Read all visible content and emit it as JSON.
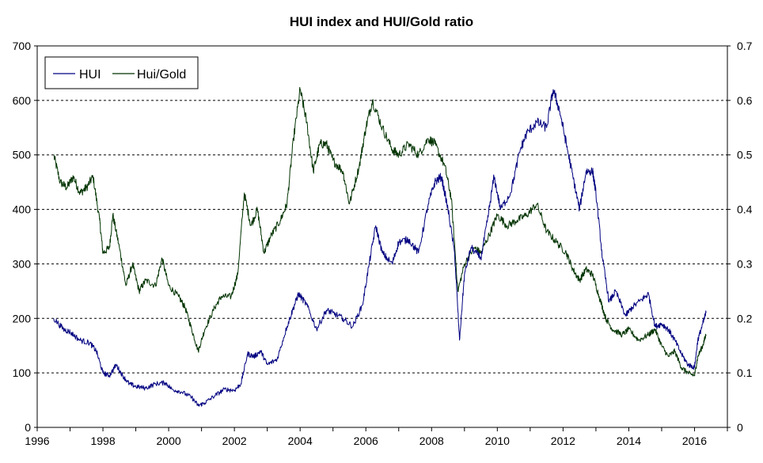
{
  "chart_data": {
    "type": "line",
    "title": "HUI index and HUI/Gold ratio",
    "xlabel": "",
    "ylabel": "",
    "x_range": [
      1996,
      2017
    ],
    "x_ticks": [
      "1996",
      "1998",
      "2000",
      "2002",
      "2004",
      "2006",
      "2008",
      "2010",
      "2012",
      "2014",
      "2016"
    ],
    "y_left": {
      "range": [
        0,
        700
      ],
      "ticks": [
        "0",
        "100",
        "200",
        "300",
        "400",
        "500",
        "600",
        "700"
      ]
    },
    "y_right": {
      "range": [
        0,
        0.7
      ],
      "ticks": [
        "0",
        "0.1",
        "0.2",
        "0.3",
        "0.4",
        "0.5",
        "0.6",
        "0.7"
      ]
    },
    "grid": "horizontal dashed",
    "legend_position": "top-left",
    "series": [
      {
        "name": "HUI",
        "axis": "left",
        "color": "#000080",
        "points": [
          [
            1996.5,
            200
          ],
          [
            1996.8,
            180
          ],
          [
            1997.0,
            175
          ],
          [
            1997.3,
            160
          ],
          [
            1997.6,
            155
          ],
          [
            1997.8,
            140
          ],
          [
            1998.0,
            100
          ],
          [
            1998.2,
            95
          ],
          [
            1998.4,
            115
          ],
          [
            1998.6,
            95
          ],
          [
            1998.8,
            80
          ],
          [
            1999.0,
            75
          ],
          [
            1999.3,
            72
          ],
          [
            1999.6,
            80
          ],
          [
            1999.9,
            82
          ],
          [
            2000.1,
            70
          ],
          [
            2000.4,
            65
          ],
          [
            2000.7,
            55
          ],
          [
            2000.9,
            40
          ],
          [
            2001.1,
            45
          ],
          [
            2001.4,
            58
          ],
          [
            2001.7,
            70
          ],
          [
            2002.0,
            68
          ],
          [
            2002.2,
            80
          ],
          [
            2002.4,
            135
          ],
          [
            2002.6,
            130
          ],
          [
            2002.8,
            140
          ],
          [
            2003.0,
            115
          ],
          [
            2003.3,
            125
          ],
          [
            2003.6,
            185
          ],
          [
            2003.8,
            220
          ],
          [
            2003.95,
            245
          ],
          [
            2004.2,
            225
          ],
          [
            2004.5,
            180
          ],
          [
            2004.8,
            215
          ],
          [
            2005.0,
            210
          ],
          [
            2005.3,
            200
          ],
          [
            2005.6,
            185
          ],
          [
            2005.9,
            225
          ],
          [
            2006.1,
            300
          ],
          [
            2006.3,
            370
          ],
          [
            2006.5,
            320
          ],
          [
            2006.8,
            300
          ],
          [
            2007.0,
            340
          ],
          [
            2007.3,
            345
          ],
          [
            2007.6,
            320
          ],
          [
            2007.9,
            410
          ],
          [
            2008.1,
            450
          ],
          [
            2008.3,
            460
          ],
          [
            2008.5,
            400
          ],
          [
            2008.7,
            320
          ],
          [
            2008.85,
            160
          ],
          [
            2009.0,
            280
          ],
          [
            2009.2,
            330
          ],
          [
            2009.5,
            310
          ],
          [
            2009.7,
            380
          ],
          [
            2009.9,
            460
          ],
          [
            2010.1,
            400
          ],
          [
            2010.4,
            430
          ],
          [
            2010.7,
            510
          ],
          [
            2010.9,
            540
          ],
          [
            2011.2,
            560
          ],
          [
            2011.5,
            550
          ],
          [
            2011.7,
            620
          ],
          [
            2011.9,
            580
          ],
          [
            2012.1,
            520
          ],
          [
            2012.3,
            460
          ],
          [
            2012.5,
            400
          ],
          [
            2012.7,
            470
          ],
          [
            2012.9,
            470
          ],
          [
            2013.0,
            430
          ],
          [
            2013.2,
            310
          ],
          [
            2013.4,
            230
          ],
          [
            2013.6,
            250
          ],
          [
            2013.9,
            205
          ],
          [
            2014.1,
            220
          ],
          [
            2014.4,
            235
          ],
          [
            2014.6,
            245
          ],
          [
            2014.8,
            185
          ],
          [
            2015.0,
            190
          ],
          [
            2015.2,
            180
          ],
          [
            2015.4,
            160
          ],
          [
            2015.6,
            135
          ],
          [
            2015.8,
            115
          ],
          [
            2016.0,
            110
          ],
          [
            2016.1,
            160
          ],
          [
            2016.25,
            190
          ],
          [
            2016.35,
            210
          ]
        ]
      },
      {
        "name": "Hui/Gold",
        "axis": "right",
        "color": "#003300",
        "points": [
          [
            1996.5,
            0.5
          ],
          [
            1996.7,
            0.45
          ],
          [
            1996.9,
            0.44
          ],
          [
            1997.1,
            0.46
          ],
          [
            1997.3,
            0.43
          ],
          [
            1997.5,
            0.44
          ],
          [
            1997.7,
            0.46
          ],
          [
            1997.9,
            0.38
          ],
          [
            1998.0,
            0.32
          ],
          [
            1998.2,
            0.33
          ],
          [
            1998.3,
            0.39
          ],
          [
            1998.5,
            0.33
          ],
          [
            1998.7,
            0.26
          ],
          [
            1998.9,
            0.3
          ],
          [
            1999.1,
            0.25
          ],
          [
            1999.3,
            0.27
          ],
          [
            1999.6,
            0.26
          ],
          [
            1999.8,
            0.31
          ],
          [
            2000.0,
            0.26
          ],
          [
            2000.3,
            0.24
          ],
          [
            2000.5,
            0.22
          ],
          [
            2000.7,
            0.18
          ],
          [
            2000.9,
            0.14
          ],
          [
            2001.1,
            0.18
          ],
          [
            2001.4,
            0.22
          ],
          [
            2001.6,
            0.24
          ],
          [
            2001.9,
            0.24
          ],
          [
            2002.1,
            0.28
          ],
          [
            2002.3,
            0.43
          ],
          [
            2002.5,
            0.37
          ],
          [
            2002.7,
            0.4
          ],
          [
            2002.9,
            0.32
          ],
          [
            2003.1,
            0.35
          ],
          [
            2003.4,
            0.38
          ],
          [
            2003.6,
            0.41
          ],
          [
            2003.8,
            0.53
          ],
          [
            2004.0,
            0.62
          ],
          [
            2004.2,
            0.56
          ],
          [
            2004.4,
            0.47
          ],
          [
            2004.6,
            0.52
          ],
          [
            2004.8,
            0.52
          ],
          [
            2005.0,
            0.49
          ],
          [
            2005.3,
            0.47
          ],
          [
            2005.5,
            0.41
          ],
          [
            2005.8,
            0.48
          ],
          [
            2006.0,
            0.55
          ],
          [
            2006.2,
            0.6
          ],
          [
            2006.5,
            0.55
          ],
          [
            2006.8,
            0.51
          ],
          [
            2007.0,
            0.5
          ],
          [
            2007.3,
            0.52
          ],
          [
            2007.6,
            0.5
          ],
          [
            2007.9,
            0.53
          ],
          [
            2008.1,
            0.52
          ],
          [
            2008.4,
            0.48
          ],
          [
            2008.6,
            0.42
          ],
          [
            2008.8,
            0.25
          ],
          [
            2009.0,
            0.3
          ],
          [
            2009.3,
            0.33
          ],
          [
            2009.5,
            0.32
          ],
          [
            2009.8,
            0.36
          ],
          [
            2010.0,
            0.39
          ],
          [
            2010.3,
            0.37
          ],
          [
            2010.6,
            0.38
          ],
          [
            2010.9,
            0.39
          ],
          [
            2011.2,
            0.41
          ],
          [
            2011.5,
            0.36
          ],
          [
            2011.8,
            0.34
          ],
          [
            2012.1,
            0.32
          ],
          [
            2012.3,
            0.29
          ],
          [
            2012.5,
            0.27
          ],
          [
            2012.7,
            0.29
          ],
          [
            2012.9,
            0.28
          ],
          [
            2013.1,
            0.24
          ],
          [
            2013.3,
            0.2
          ],
          [
            2013.5,
            0.18
          ],
          [
            2013.8,
            0.17
          ],
          [
            2014.0,
            0.18
          ],
          [
            2014.3,
            0.16
          ],
          [
            2014.6,
            0.17
          ],
          [
            2014.8,
            0.18
          ],
          [
            2015.0,
            0.15
          ],
          [
            2015.2,
            0.13
          ],
          [
            2015.4,
            0.14
          ],
          [
            2015.6,
            0.11
          ],
          [
            2015.8,
            0.1
          ],
          [
            2016.0,
            0.095
          ],
          [
            2016.1,
            0.13
          ],
          [
            2016.25,
            0.15
          ],
          [
            2016.35,
            0.17
          ]
        ]
      }
    ]
  }
}
